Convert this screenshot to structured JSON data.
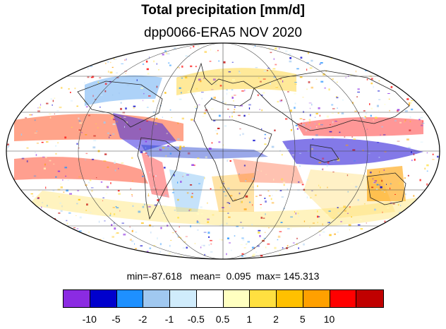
{
  "title": "Total precipitation [mm/d]",
  "subtitle": "dpp0066-ERA5 NOV 2020",
  "stats": {
    "min_label": "min=",
    "min_value": "-87.618",
    "mean_label": "mean=",
    "mean_value": "0.095",
    "max_label": "max=",
    "max_value": "145.313"
  },
  "map": {
    "projection": "mollweide",
    "ocean_color": "#ffffff",
    "graticule_color": "#333333",
    "coastline_color": "#222222"
  },
  "colorbar": {
    "colors": [
      "#8b2be2",
      "#0000cd",
      "#1e90ff",
      "#a0c8f0",
      "#d0ecfc",
      "#ffffff",
      "#ffffc0",
      "#ffe040",
      "#ffc000",
      "#ffa000",
      "#ff0000",
      "#c00000"
    ],
    "labels": [
      "-10",
      "-5",
      "-2",
      "-1",
      "-0.5",
      "0.5",
      "1",
      "2",
      "5",
      "10"
    ]
  }
}
